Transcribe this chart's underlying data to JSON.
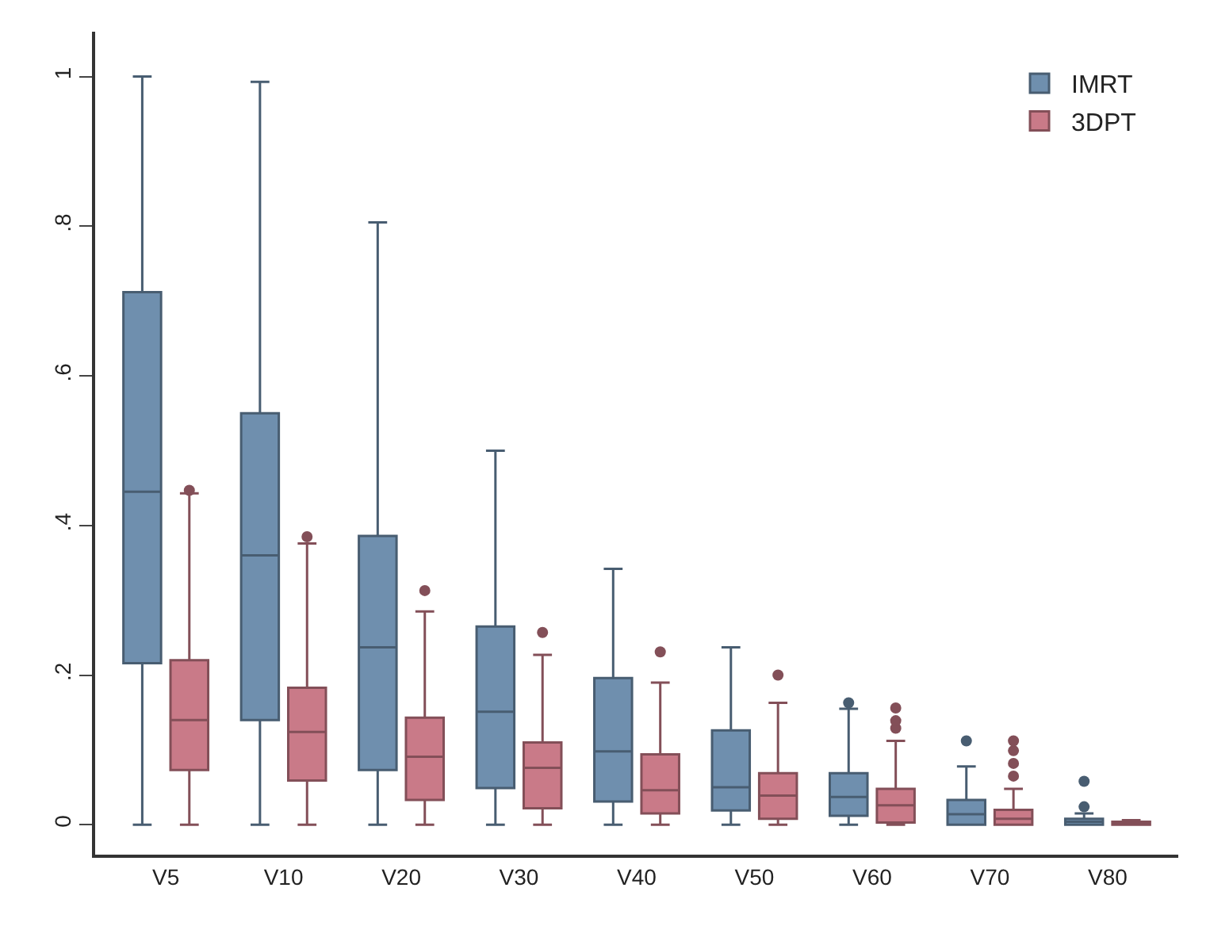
{
  "chart_data": {
    "type": "box",
    "categories": [
      "V5",
      "V10",
      "V20",
      "V30",
      "V40",
      "V50",
      "V60",
      "V70",
      "V80"
    ],
    "ylim": [
      -0.04,
      1.06
    ],
    "yticks": [
      0,
      {
        "value": 0.2,
        "label": ".2"
      },
      {
        "value": 0.4,
        "label": ".4"
      },
      {
        "value": 0.6,
        "label": ".6"
      },
      {
        "value": 0.8,
        "label": ".8"
      },
      1
    ],
    "grid": false,
    "legend": "top right",
    "marker": "circle",
    "series": [
      {
        "name": "IMRT",
        "color": "#6f8fae",
        "boxes": [
          {
            "low": 0,
            "q1": 0.216,
            "median": 0.445,
            "q3": 0.712,
            "high": 1.0
          },
          {
            "low": 0,
            "q1": 0.14,
            "median": 0.36,
            "q3": 0.55,
            "high": 0.993
          },
          {
            "low": 0,
            "q1": 0.073,
            "median": 0.237,
            "q3": 0.386,
            "high": 0.805
          },
          {
            "low": 0,
            "q1": 0.049,
            "median": 0.151,
            "q3": 0.265,
            "high": 0.5
          },
          {
            "low": 0,
            "q1": 0.031,
            "median": 0.098,
            "q3": 0.196,
            "high": 0.342
          },
          {
            "low": 0,
            "q1": 0.019,
            "median": 0.05,
            "q3": 0.126,
            "high": 0.237
          },
          {
            "low": 0,
            "q1": 0.012,
            "median": 0.037,
            "q3": 0.069,
            "high": 0.155,
            "outliers": [
              0.163
            ]
          },
          {
            "low": 0,
            "q1": 0,
            "median": 0.014,
            "q3": 0.033,
            "high": 0.078,
            "outliers": [
              0.112
            ]
          },
          {
            "low": 0,
            "q1": 0,
            "median": 0.004,
            "q3": 0.008,
            "high": 0.015,
            "outliers": [
              0.024,
              0.058
            ]
          }
        ]
      },
      {
        "name": "3DPT",
        "color": "#c97a88",
        "boxes": [
          {
            "low": 0,
            "q1": 0.073,
            "median": 0.14,
            "q3": 0.22,
            "high": 0.443,
            "outliers": [
              0.447
            ]
          },
          {
            "low": 0,
            "q1": 0.059,
            "median": 0.124,
            "q3": 0.183,
            "high": 0.376,
            "outliers": [
              0.385
            ]
          },
          {
            "low": 0,
            "q1": 0.033,
            "median": 0.091,
            "q3": 0.143,
            "high": 0.285,
            "outliers": [
              0.313
            ]
          },
          {
            "low": 0,
            "q1": 0.022,
            "median": 0.076,
            "q3": 0.11,
            "high": 0.227,
            "outliers": [
              0.257
            ]
          },
          {
            "low": 0,
            "q1": 0.015,
            "median": 0.046,
            "q3": 0.094,
            "high": 0.19,
            "outliers": [
              0.231
            ]
          },
          {
            "low": 0,
            "q1": 0.008,
            "median": 0.039,
            "q3": 0.069,
            "high": 0.163,
            "outliers": [
              0.2
            ]
          },
          {
            "low": 0,
            "q1": 0.003,
            "median": 0.026,
            "q3": 0.048,
            "high": 0.112,
            "outliers": [
              0.129,
              0.139,
              0.156
            ]
          },
          {
            "low": 0,
            "q1": 0,
            "median": 0.008,
            "q3": 0.02,
            "high": 0.048,
            "outliers": [
              0.065,
              0.082,
              0.099,
              0.112
            ]
          },
          {
            "low": 0,
            "q1": 0,
            "median": 0.002,
            "q3": 0.004,
            "high": 0.006
          }
        ]
      }
    ]
  }
}
